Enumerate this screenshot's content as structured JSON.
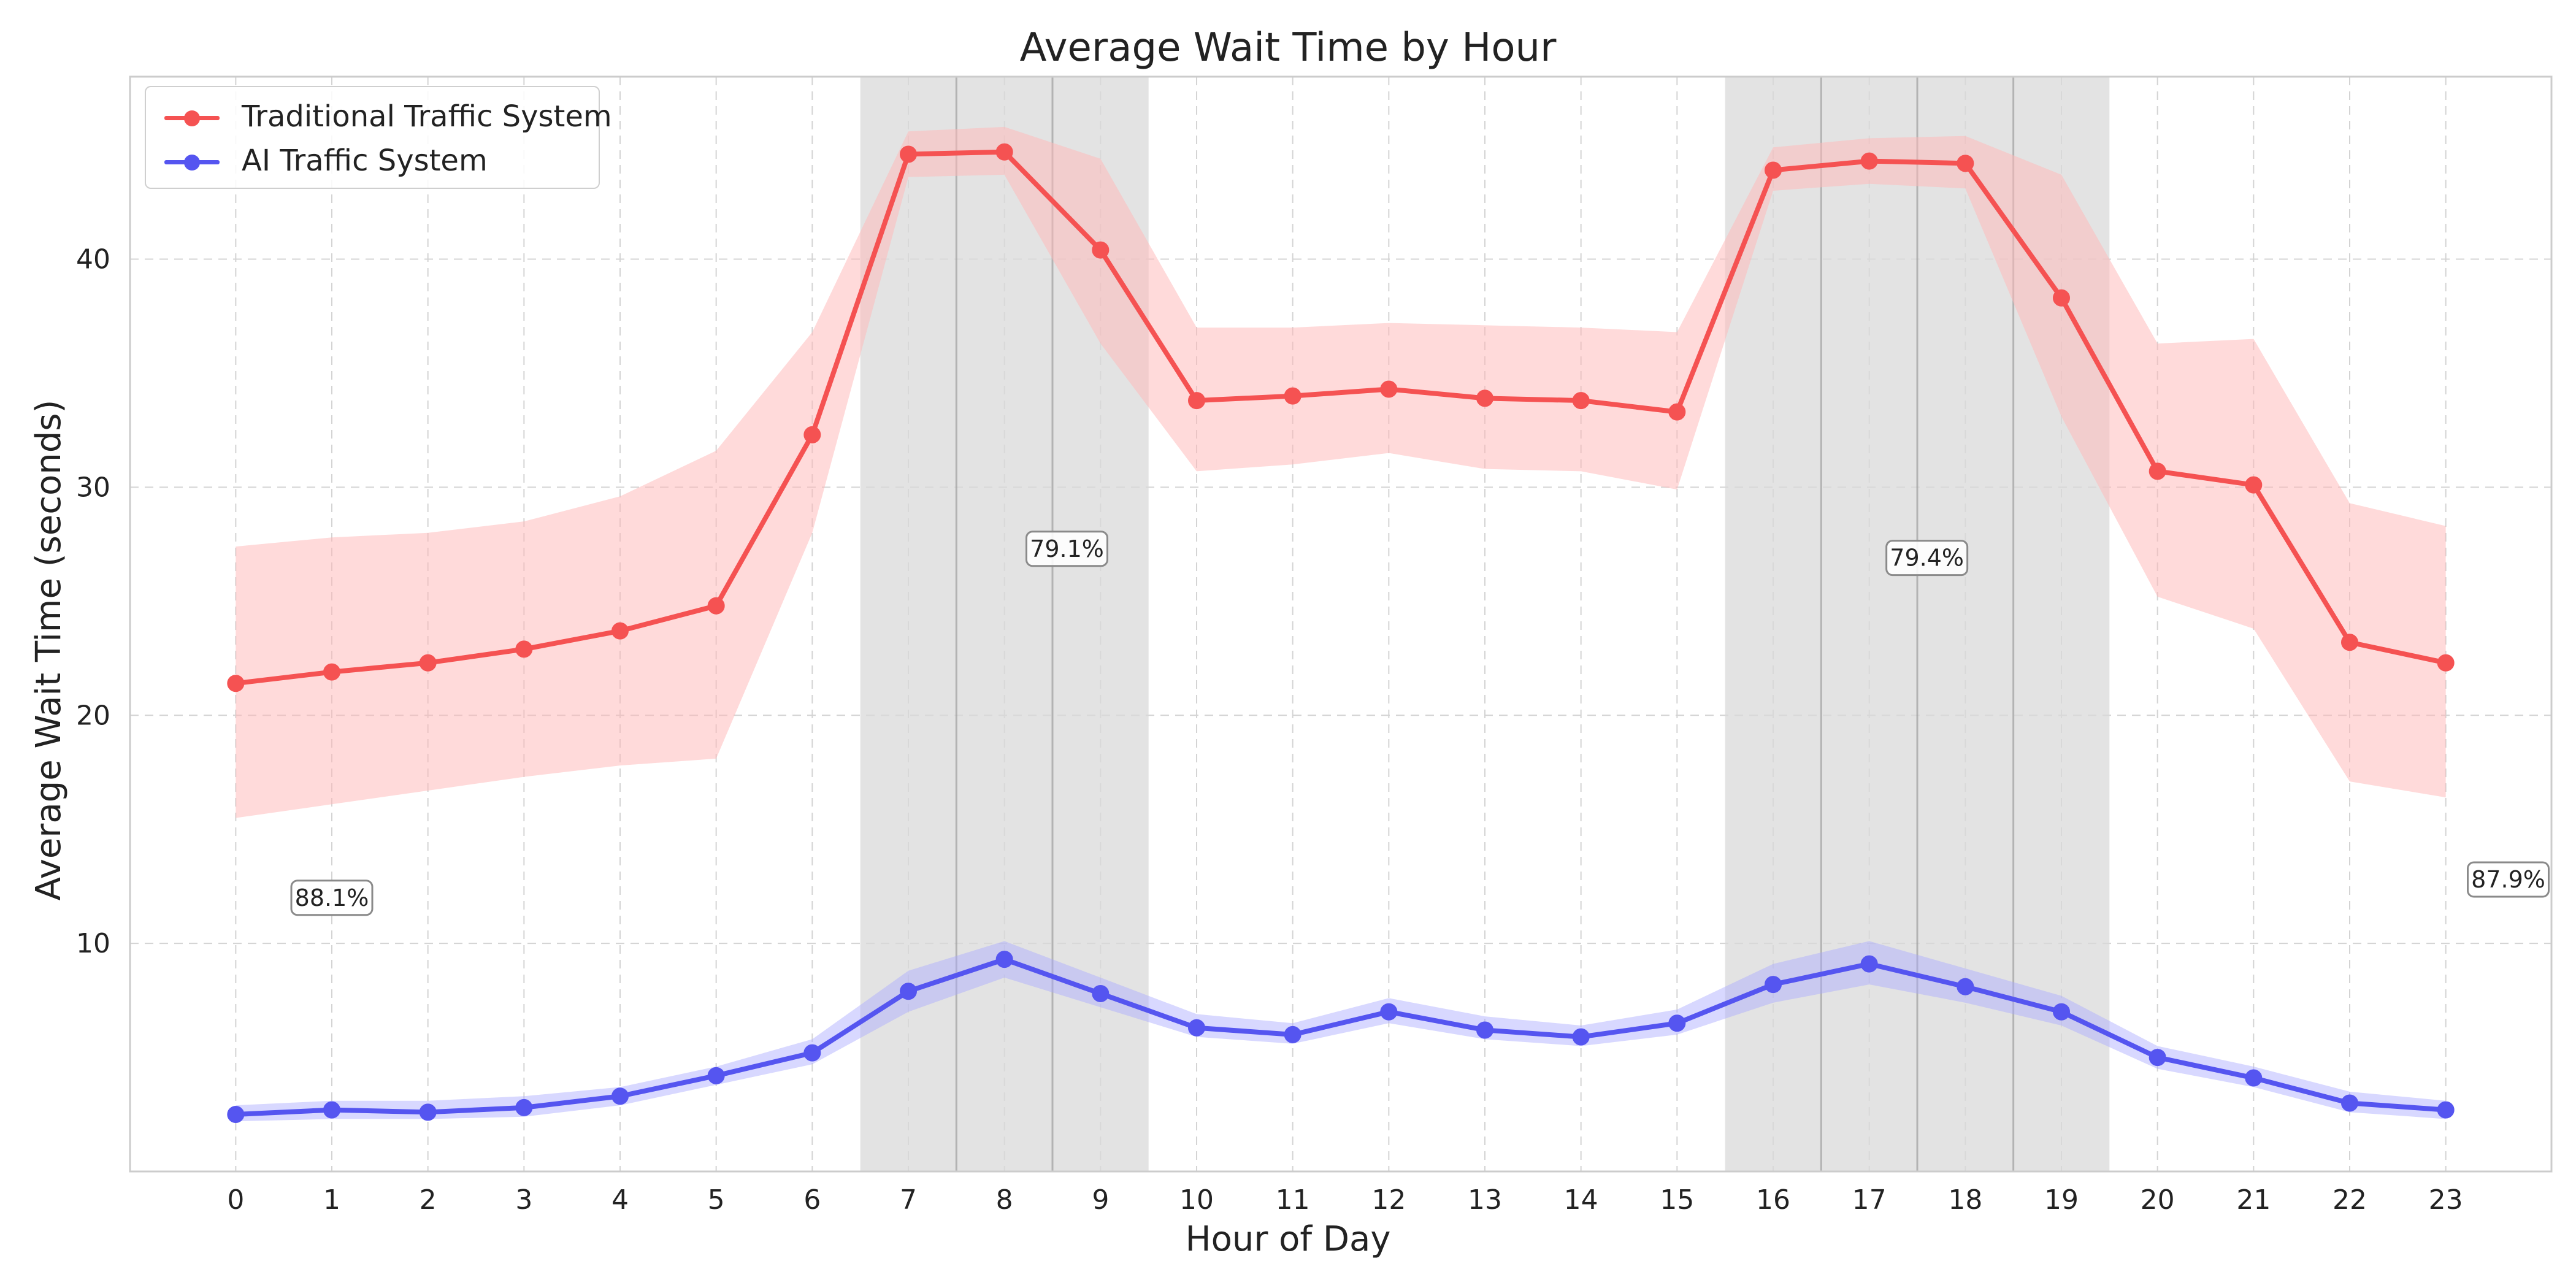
{
  "chart_data": {
    "type": "line",
    "title": "Average Wait Time by Hour",
    "xlabel": "Hour of Day",
    "ylabel": "Average Wait Time (seconds)",
    "x": [
      0,
      1,
      2,
      3,
      4,
      5,
      6,
      7,
      8,
      9,
      10,
      11,
      12,
      13,
      14,
      15,
      16,
      17,
      18,
      19,
      20,
      21,
      22,
      23
    ],
    "xlim": [
      -1.1,
      24.1
    ],
    "ylim": [
      0,
      48
    ],
    "y_ticks": [
      10,
      20,
      30,
      40
    ],
    "grid": true,
    "legend": {
      "placement": "top-left",
      "entries": [
        "Traditional Traffic System",
        "AI Traffic System"
      ]
    },
    "series": [
      {
        "name": "Traditional Traffic System",
        "color": "#f55252",
        "band_color": "#ffb8b8",
        "values": [
          21.4,
          21.9,
          22.3,
          22.9,
          23.7,
          24.8,
          32.3,
          44.6,
          44.7,
          40.4,
          33.8,
          34.0,
          34.3,
          33.9,
          33.8,
          33.3,
          43.9,
          44.3,
          44.2,
          38.3,
          30.7,
          30.1,
          23.2,
          22.3
        ],
        "lower": [
          15.5,
          16.1,
          16.7,
          17.3,
          17.8,
          18.1,
          28.0,
          43.6,
          43.7,
          36.3,
          30.7,
          31.0,
          31.5,
          30.8,
          30.7,
          29.9,
          43.0,
          43.3,
          43.1,
          33.1,
          25.2,
          23.8,
          17.1,
          16.4
        ],
        "upper": [
          27.4,
          27.8,
          28.0,
          28.5,
          29.6,
          31.6,
          36.8,
          45.6,
          45.8,
          44.4,
          37.0,
          37.0,
          37.2,
          37.1,
          37.0,
          36.8,
          44.9,
          45.3,
          45.4,
          43.7,
          36.3,
          36.5,
          29.3,
          28.3
        ]
      },
      {
        "name": "AI Traffic System",
        "color": "#5555f0",
        "band_color": "#a8a8ff",
        "values": [
          2.5,
          2.7,
          2.6,
          2.8,
          3.3,
          4.2,
          5.2,
          7.9,
          9.3,
          7.8,
          6.3,
          6.0,
          7.0,
          6.2,
          5.9,
          6.5,
          8.2,
          9.1,
          8.1,
          7.0,
          5.0,
          4.1,
          3.0,
          2.7
        ],
        "lower": [
          2.2,
          2.3,
          2.3,
          2.4,
          2.9,
          3.8,
          4.7,
          7.0,
          8.5,
          7.2,
          5.9,
          5.6,
          6.5,
          5.8,
          5.5,
          6.0,
          7.4,
          8.2,
          7.4,
          6.4,
          4.5,
          3.7,
          2.6,
          2.3
        ],
        "upper": [
          2.9,
          3.1,
          3.1,
          3.3,
          3.7,
          4.6,
          5.8,
          8.8,
          10.1,
          8.5,
          6.9,
          6.5,
          7.6,
          6.8,
          6.4,
          7.1,
          9.1,
          10.1,
          8.9,
          7.7,
          5.5,
          4.6,
          3.5,
          3.1
        ]
      }
    ],
    "shaded_ranges": [
      {
        "x_start": 6.5,
        "x_end": 9.5
      },
      {
        "x_start": 15.5,
        "x_end": 19.5
      }
    ],
    "vertical_lines": [
      7.5,
      8.5,
      16.5,
      17.5,
      18.5
    ],
    "annotations": [
      {
        "x": 1.0,
        "y": 12.0,
        "text": "88.1%"
      },
      {
        "x": 8.65,
        "y": 27.3,
        "text": "79.1%"
      },
      {
        "x": 17.6,
        "y": 26.9,
        "text": "79.4%"
      },
      {
        "x": 23.65,
        "y": 12.8,
        "text": "87.9%"
      }
    ]
  }
}
